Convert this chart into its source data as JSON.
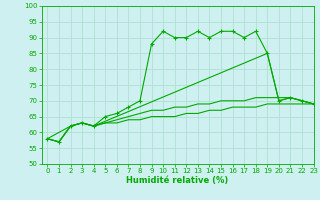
{
  "xlabel": "Humidité relative (%)",
  "background_color": "#cff0f0",
  "grid_color": "#aaddcc",
  "line_color": "#00aa00",
  "ylim": [
    50,
    100
  ],
  "xlim": [
    -0.5,
    23
  ],
  "yticks": [
    50,
    55,
    60,
    65,
    70,
    75,
    80,
    85,
    90,
    95,
    100
  ],
  "xticks": [
    0,
    1,
    2,
    3,
    4,
    5,
    6,
    7,
    8,
    9,
    10,
    11,
    12,
    13,
    14,
    15,
    16,
    17,
    18,
    19,
    20,
    21,
    22,
    23
  ],
  "series1_x": [
    0,
    1,
    2,
    3,
    4,
    5,
    6,
    7,
    8,
    9,
    10,
    11,
    12,
    13,
    14,
    15,
    16,
    17,
    18,
    19,
    20,
    21,
    22,
    23
  ],
  "series1_y": [
    58,
    57,
    62,
    63,
    62,
    65,
    66,
    68,
    70,
    88,
    92,
    90,
    90,
    92,
    90,
    92,
    92,
    90,
    92,
    85,
    70,
    71,
    70,
    69
  ],
  "series2_x": [
    0,
    2,
    3,
    4,
    19,
    20,
    21,
    22,
    23
  ],
  "series2_y": [
    58,
    62,
    63,
    62,
    85,
    70,
    71,
    70,
    69
  ],
  "series3_x": [
    0,
    1,
    2,
    3,
    4,
    5,
    6,
    7,
    8,
    9,
    10,
    11,
    12,
    13,
    14,
    15,
    16,
    17,
    18,
    19,
    20,
    21,
    22,
    23
  ],
  "series3_y": [
    58,
    57,
    62,
    63,
    62,
    63,
    63,
    64,
    64,
    65,
    65,
    65,
    66,
    66,
    67,
    67,
    68,
    68,
    68,
    69,
    69,
    69,
    69,
    69
  ],
  "series4_x": [
    0,
    1,
    2,
    3,
    4,
    5,
    6,
    7,
    8,
    9,
    10,
    11,
    12,
    13,
    14,
    15,
    16,
    17,
    18,
    19,
    20,
    21,
    22,
    23
  ],
  "series4_y": [
    58,
    57,
    62,
    63,
    62,
    63,
    64,
    65,
    66,
    67,
    67,
    68,
    68,
    69,
    69,
    70,
    70,
    70,
    71,
    71,
    71,
    71,
    70,
    69
  ]
}
